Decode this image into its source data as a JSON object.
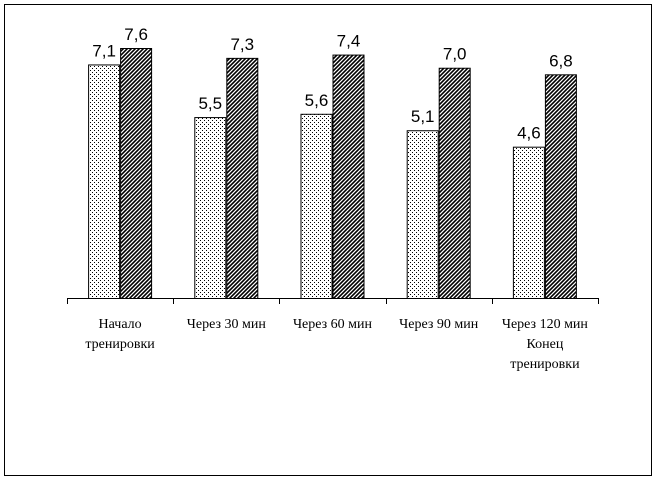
{
  "chart_data": {
    "type": "bar",
    "categories": [
      "Начало\nтренировки",
      "Через 30 мин",
      "Через 60 мин",
      "Через 90 мин",
      "Через 120 мин\nКонец\nтренировки"
    ],
    "series": [
      {
        "values": [
          7.1,
          5.5,
          5.6,
          5.1,
          4.6
        ],
        "pattern": "dotted"
      },
      {
        "values": [
          7.6,
          7.3,
          7.4,
          7.0,
          6.8
        ],
        "pattern": "diagonal-hatch"
      }
    ],
    "value_labels": [
      [
        "7,1",
        "5,5",
        "5,6",
        "5,1",
        "4,6"
      ],
      [
        "7,6",
        "7,3",
        "7,4",
        "7,0",
        "6,8"
      ]
    ],
    "ylim": [
      0,
      7.6
    ],
    "grid": false,
    "legend": "none",
    "colors": {
      "bar_outline": "#000000",
      "background": "#ffffff"
    }
  }
}
